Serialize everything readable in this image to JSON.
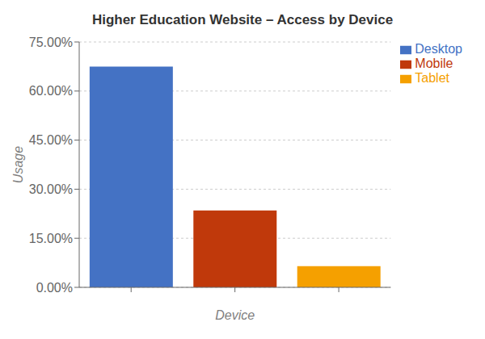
{
  "chart_data": {
    "type": "bar",
    "title": "Higher Education Website – Access by Device",
    "xlabel": "Device",
    "ylabel": "Usage",
    "categories": [
      null,
      null,
      null
    ],
    "series": [
      {
        "name": "Desktop",
        "color": "#4472C4",
        "values": [
          0.675,
          null,
          null
        ]
      },
      {
        "name": "Mobile",
        "color": "#C0390B",
        "values": [
          null,
          0.235,
          null
        ]
      },
      {
        "name": "Tablet",
        "color": "#F5A000",
        "values": [
          null,
          null,
          0.065
        ]
      }
    ],
    "stacked": true,
    "ylim": [
      0,
      0.75
    ],
    "yticks": [
      {
        "value": 0.0,
        "label": "0.00%"
      },
      {
        "value": 0.15,
        "label": "15.00%"
      },
      {
        "value": 0.3,
        "label": "30.00%"
      },
      {
        "value": 0.45,
        "label": "45.00%"
      },
      {
        "value": 0.6,
        "label": "60.00%"
      },
      {
        "value": 0.75,
        "label": "75.00%"
      }
    ],
    "grid": true,
    "legend": "upper right"
  }
}
